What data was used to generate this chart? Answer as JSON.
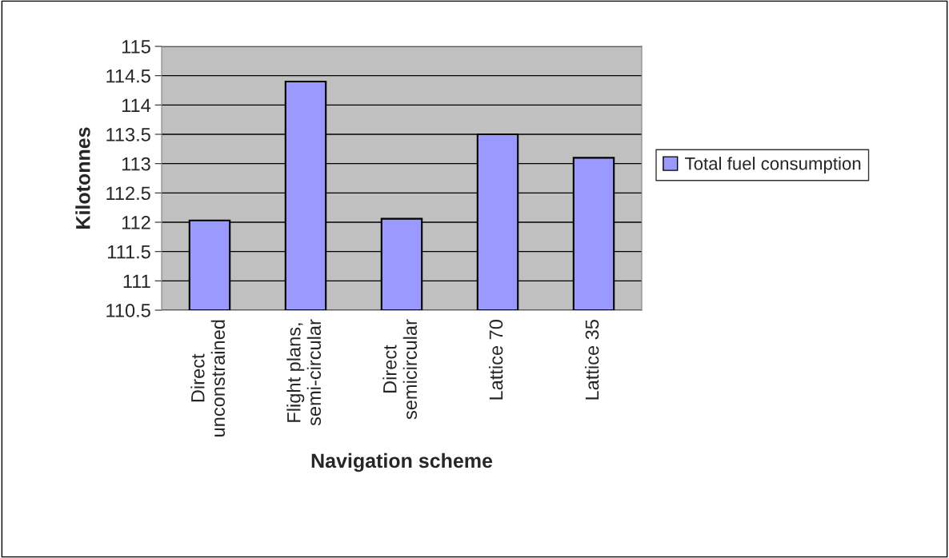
{
  "chart_data": {
    "type": "bar",
    "xlabel": "Navigation scheme",
    "ylabel": "Kilotonnes",
    "categories": [
      "Direct\nunconstrained",
      "Flight plans,\nsemi-circular",
      "Direct\nsemicircular",
      "Lattice 70",
      "Lattice 35"
    ],
    "series": [
      {
        "name": "Total fuel consumption",
        "color": "#9999ff",
        "values": [
          112.03,
          114.4,
          112.06,
          113.5,
          113.1
        ]
      }
    ],
    "ylim": [
      110.5,
      115
    ],
    "yticks": [
      110.5,
      111,
      111.5,
      112,
      112.5,
      113,
      113.5,
      114,
      114.5,
      115
    ],
    "grid": "y",
    "legend": "right"
  }
}
